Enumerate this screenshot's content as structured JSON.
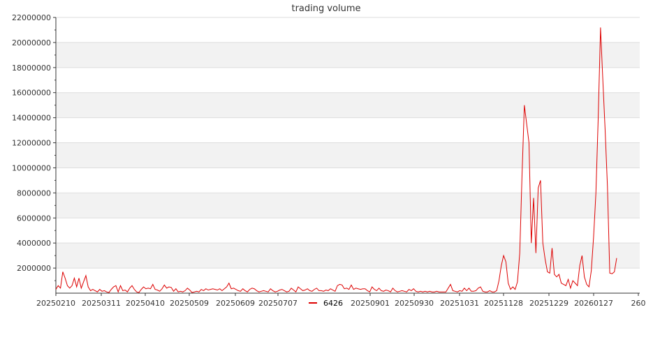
{
  "chart_data": {
    "type": "line",
    "title": "trading volume",
    "xlabel": "",
    "ylabel": "",
    "x_tick_labels": [
      "20250210",
      "20250311",
      "20250410",
      "20250509",
      "20250609",
      "20250707",
      "20250901",
      "20250930",
      "20251031",
      "20251128",
      "20251229",
      "20260127",
      "260"
    ],
    "ylim": [
      0,
      22000000
    ],
    "y_ticks": [
      "2000000",
      "4000000",
      "6000000",
      "8000000",
      "10000000",
      "12000000",
      "14000000",
      "16000000",
      "18000000",
      "20000000",
      "22000000"
    ],
    "y_tick_values": [
      2000000,
      4000000,
      6000000,
      8000000,
      10000000,
      12000000,
      14000000,
      16000000,
      18000000,
      20000000,
      22000000
    ],
    "grid": "horizontal bands",
    "legend_position": "bottom-center",
    "series": [
      {
        "name": "6426",
        "color": "#dd0000",
        "values": [
          300000,
          600000,
          400000,
          1700000,
          1200000,
          600000,
          400000,
          600000,
          1200000,
          500000,
          1200000,
          400000,
          900000,
          1400000,
          500000,
          200000,
          300000,
          200000,
          100000,
          300000,
          150000,
          200000,
          100000,
          50000,
          300000,
          500000,
          600000,
          100000,
          600000,
          200000,
          250000,
          100000,
          400000,
          600000,
          300000,
          100000,
          50000,
          300000,
          500000,
          350000,
          400000,
          350000,
          700000,
          300000,
          250000,
          150000,
          350000,
          650000,
          400000,
          500000,
          450000,
          150000,
          350000,
          100000,
          150000,
          100000,
          200000,
          400000,
          250000,
          50000,
          100000,
          150000,
          100000,
          300000,
          200000,
          350000,
          250000,
          300000,
          350000,
          300000,
          250000,
          350000,
          200000,
          350000,
          500000,
          800000,
          350000,
          400000,
          300000,
          200000,
          150000,
          350000,
          200000,
          100000,
          300000,
          400000,
          350000,
          200000,
          100000,
          150000,
          200000,
          150000,
          100000,
          350000,
          200000,
          100000,
          150000,
          250000,
          300000,
          200000,
          100000,
          150000,
          400000,
          250000,
          100000,
          500000,
          350000,
          200000,
          250000,
          350000,
          200000,
          150000,
          300000,
          400000,
          200000,
          200000,
          150000,
          250000,
          200000,
          350000,
          250000,
          150000,
          600000,
          700000,
          650000,
          350000,
          400000,
          300000,
          650000,
          300000,
          400000,
          350000,
          300000,
          350000,
          350000,
          200000,
          100000,
          500000,
          300000,
          200000,
          400000,
          200000,
          150000,
          250000,
          200000,
          100000,
          400000,
          200000,
          100000,
          150000,
          200000,
          150000,
          100000,
          300000,
          200000,
          350000,
          150000,
          100000,
          150000,
          100000,
          150000,
          100000,
          150000,
          100000,
          100000,
          150000,
          100000,
          100000,
          100000,
          100000,
          400000,
          700000,
          200000,
          150000,
          100000,
          200000,
          150000,
          400000,
          200000,
          400000,
          150000,
          150000,
          200000,
          400000,
          500000,
          150000,
          100000,
          100000,
          200000,
          100000,
          100000,
          200000,
          1000000,
          2200000,
          3000000,
          2500000,
          800000,
          300000,
          500000,
          300000,
          900000,
          3200000,
          9500000,
          15000000,
          13500000,
          12000000,
          4000000,
          7600000,
          3200000,
          8400000,
          9000000,
          4000000,
          2700000,
          1700000,
          1600000,
          3600000,
          1500000,
          1300000,
          1500000,
          800000,
          700000,
          600000,
          1100000,
          400000,
          1000000,
          800000,
          600000,
          2200000,
          3000000,
          1300000,
          700000,
          500000,
          1800000,
          4500000,
          8000000,
          14000000,
          21200000,
          17000000,
          13000000,
          8500000,
          1600000,
          1550000,
          1700000,
          2800000
        ]
      }
    ]
  }
}
